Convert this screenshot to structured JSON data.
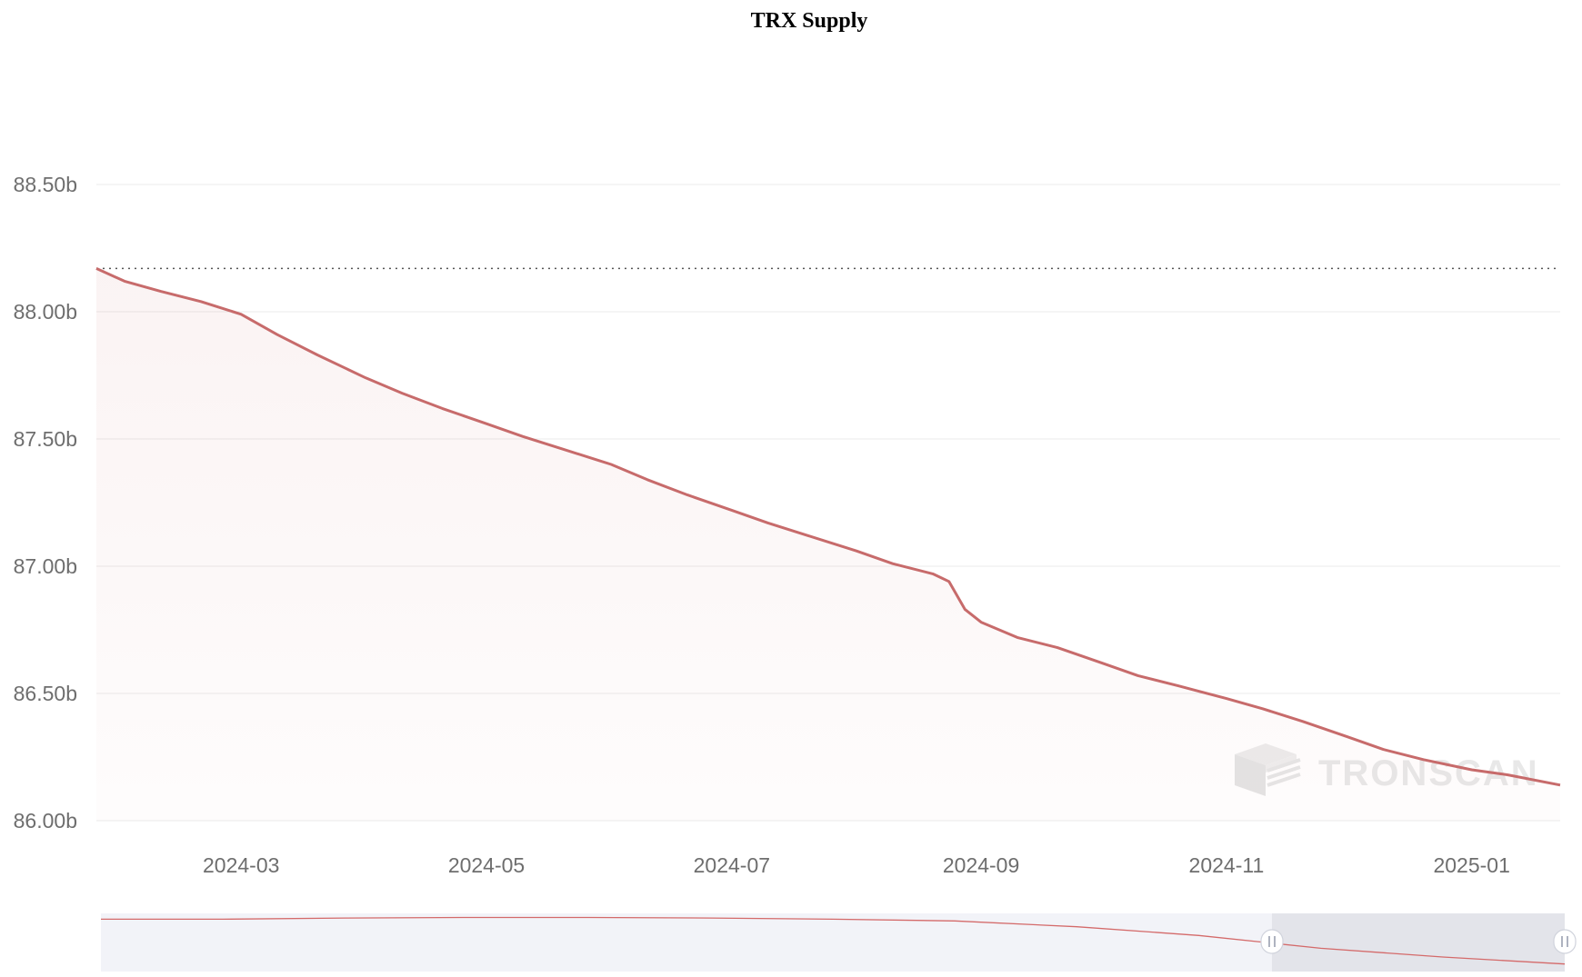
{
  "chart_data": {
    "type": "area",
    "title": "TRX Supply",
    "xlabel": "",
    "ylabel": "",
    "ylim": [
      86000000000,
      88500000000
    ],
    "xlim": [
      "2024-01-25",
      "2025-01-23"
    ],
    "y_ticks": [
      {
        "value": 86000000000,
        "label": "86.00b"
      },
      {
        "value": 86500000000,
        "label": "86.50b"
      },
      {
        "value": 87000000000,
        "label": "87.00b"
      },
      {
        "value": 87500000000,
        "label": "87.50b"
      },
      {
        "value": 88000000000,
        "label": "88.00b"
      },
      {
        "value": 88500000000,
        "label": "88.50b"
      }
    ],
    "x_ticks": [
      {
        "value": "2024-03-01",
        "label": "2024-03"
      },
      {
        "value": "2024-05-01",
        "label": "2024-05"
      },
      {
        "value": "2024-07-01",
        "label": "2024-07"
      },
      {
        "value": "2024-09-01",
        "label": "2024-09"
      },
      {
        "value": "2024-11-01",
        "label": "2024-11"
      },
      {
        "value": "2025-01-01",
        "label": "2025-01"
      }
    ],
    "reference_line": {
      "value": 88170000000,
      "style": "dotted"
    },
    "grid": true,
    "legend": "none",
    "color": "#c76b6b",
    "series": [
      {
        "x": [
          "2024-01-25",
          "2024-02-01",
          "2024-02-10",
          "2024-02-20",
          "2024-03-01",
          "2024-03-10",
          "2024-03-20",
          "2024-04-01",
          "2024-04-10",
          "2024-04-20",
          "2024-05-01",
          "2024-05-10",
          "2024-05-20",
          "2024-06-01",
          "2024-06-10",
          "2024-06-20",
          "2024-07-01",
          "2024-07-10",
          "2024-07-20",
          "2024-08-01",
          "2024-08-10",
          "2024-08-20",
          "2024-08-24",
          "2024-08-28",
          "2024-09-01",
          "2024-09-10",
          "2024-09-20",
          "2024-10-01",
          "2024-10-10",
          "2024-10-20",
          "2024-11-01",
          "2024-11-10",
          "2024-11-20",
          "2024-12-01",
          "2024-12-10",
          "2024-12-20",
          "2025-01-01",
          "2025-01-10",
          "2025-01-23"
        ],
        "y": [
          88170000000,
          88120000000,
          88080000000,
          88040000000,
          87990000000,
          87910000000,
          87830000000,
          87740000000,
          87680000000,
          87620000000,
          87560000000,
          87510000000,
          87460000000,
          87400000000,
          87340000000,
          87280000000,
          87220000000,
          87170000000,
          87120000000,
          87060000000,
          87010000000,
          86970000000,
          86940000000,
          86830000000,
          86780000000,
          86720000000,
          86680000000,
          86620000000,
          86570000000,
          86530000000,
          86480000000,
          86440000000,
          86390000000,
          86330000000,
          86280000000,
          86240000000,
          86200000000,
          86180000000,
          86140000000
        ]
      }
    ]
  },
  "watermark": {
    "label": "TRONSCAN",
    "icon": "tronscan-cube-icon"
  },
  "data_zoom": {
    "range_start_percent": 80,
    "range_end_percent": 100,
    "handle_icon": "drag-handle-icon",
    "overview_y": [
      0.1,
      0.1,
      0.08,
      0.07,
      0.07,
      0.08,
      0.1,
      0.13,
      0.23,
      0.38,
      0.6,
      0.75,
      0.87
    ]
  }
}
